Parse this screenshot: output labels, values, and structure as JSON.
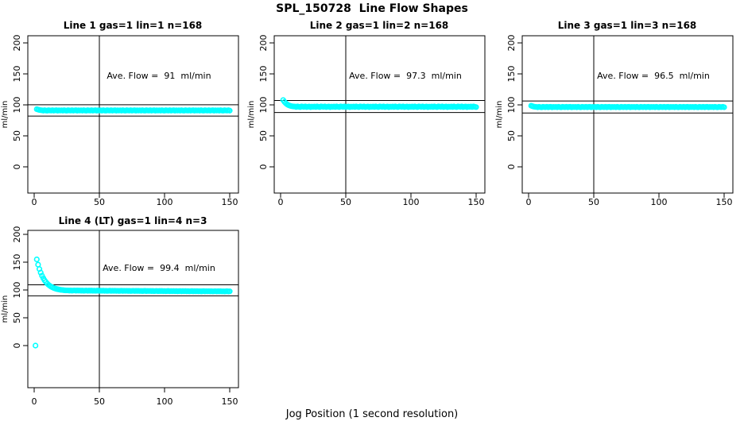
{
  "figure": {
    "title": "SPL_150728  Line Flow Shapes",
    "xlabel": "Jog Position (1 second resolution)",
    "background_color": "#ffffff",
    "axis_color": "#000000",
    "point_color": "#00ffff"
  },
  "chart_data": {
    "type": "scatter",
    "title": "SPL_150728  Line Flow Shapes",
    "xlabel": "Jog Position (1 second resolution)",
    "ylabel": "ml/min",
    "xlim": [
      0,
      155
    ],
    "ylim": [
      -40,
      210
    ],
    "grid": false,
    "legend": "none",
    "panels": [
      {
        "title": "Line 1 gas=1 lin=1 n=168",
        "annotation": "Ave. Flow =  91  ml/min",
        "ave_flow": 91,
        "n": 168,
        "ylabel": "ml/min",
        "x_ticks": [
          0,
          50,
          100,
          150
        ],
        "y_ticks": [
          0,
          50,
          100,
          150,
          200
        ],
        "ref_vline_x": 50,
        "ref_hlines": [
          100.1,
          81.9
        ],
        "x_start": 2,
        "x_step": 1,
        "y": [
          93.0,
          92.3,
          91.8,
          91.4,
          91.2,
          90.7,
          91.4,
          90.9,
          90.6,
          91.3,
          91.0,
          90.8,
          91.4,
          90.7,
          91.1,
          91.3,
          90.6,
          91.2,
          90.9,
          91.2,
          90.7,
          91.4,
          90.9,
          90.6,
          91.3,
          91.0,
          90.8,
          91.4,
          90.7,
          91.1,
          91.3,
          90.6,
          91.2,
          90.9,
          91.2,
          90.7,
          91.4,
          90.9,
          90.6,
          91.3,
          91.0,
          90.8,
          91.4,
          90.7,
          91.1,
          91.3,
          90.6,
          91.2,
          90.9,
          91.2,
          90.7,
          91.4,
          90.9,
          90.6,
          91.3,
          91.0,
          90.8,
          91.4,
          90.7,
          91.1,
          91.3,
          90.6,
          91.2,
          90.9,
          91.2,
          90.7,
          91.4,
          90.9,
          90.6,
          91.3,
          91.0,
          90.8,
          91.4,
          90.7,
          91.1,
          91.3,
          90.6,
          91.2,
          90.9,
          91.2,
          90.7,
          91.4,
          90.9,
          90.6,
          91.3,
          91.0,
          90.8,
          91.4,
          90.7,
          91.1,
          91.3,
          90.6,
          91.2,
          90.9,
          91.2,
          90.7,
          91.4,
          90.9,
          90.6,
          91.3,
          91.0,
          90.8,
          91.4,
          90.7,
          91.1,
          91.3,
          90.6,
          91.2,
          90.9,
          91.2,
          90.7,
          91.4,
          90.9,
          90.6,
          91.3,
          91.0,
          90.8,
          91.4,
          90.7,
          91.1,
          91.3,
          90.6,
          91.2,
          90.9,
          91.2,
          90.7,
          91.4,
          90.9,
          90.6,
          91.3,
          91.0,
          90.8,
          91.4,
          90.7,
          91.1,
          91.3,
          90.6,
          91.2,
          90.9,
          91.2,
          90.7,
          91.4,
          90.9,
          90.6,
          91.3,
          91.0,
          90.8,
          91.4,
          90.7
        ],
        "extra_points": []
      },
      {
        "title": "Line 2 gas=1 lin=2 n=168",
        "annotation": "Ave. Flow =  97.3  ml/min",
        "ave_flow": 97.3,
        "n": 168,
        "ylabel": "ml/min",
        "x_ticks": [
          0,
          50,
          100,
          150
        ],
        "y_ticks": [
          0,
          50,
          100,
          150,
          200
        ],
        "ref_vline_x": 50,
        "ref_hlines": [
          107.0,
          87.6
        ],
        "x_start": 2,
        "x_step": 1,
        "y": [
          107.8,
          104.8,
          102.6,
          100.9,
          99.6,
          98.7,
          98.1,
          97.7,
          97.4,
          97.3,
          96.6,
          97.5,
          96.9,
          96.4,
          97.4,
          97.1,
          96.8,
          97.5,
          96.5,
          97.0,
          97.3,
          96.3,
          97.2,
          96.8,
          97.3,
          96.6,
          97.5,
          96.9,
          96.4,
          97.4,
          97.1,
          96.8,
          97.5,
          96.5,
          97.0,
          97.3,
          96.3,
          97.2,
          96.8,
          97.3,
          96.6,
          97.5,
          96.9,
          96.4,
          97.4,
          97.1,
          96.8,
          97.5,
          96.5,
          97.0,
          97.3,
          96.3,
          97.2,
          96.8,
          97.3,
          96.6,
          97.5,
          96.9,
          96.4,
          97.4,
          97.1,
          96.8,
          97.5,
          96.5,
          97.0,
          97.3,
          96.3,
          97.2,
          96.8,
          97.3,
          96.6,
          97.5,
          96.9,
          96.4,
          97.4,
          97.1,
          96.8,
          97.5,
          96.5,
          97.0,
          97.3,
          96.3,
          97.2,
          96.8,
          97.3,
          96.6,
          97.5,
          96.9,
          96.4,
          97.4,
          97.1,
          96.8,
          97.5,
          96.5,
          97.0,
          97.3,
          96.3,
          97.2,
          96.8,
          97.3,
          96.6,
          97.5,
          96.9,
          96.4,
          97.4,
          97.1,
          96.8,
          97.5,
          96.5,
          97.0,
          97.3,
          96.3,
          97.2,
          96.8,
          97.3,
          96.6,
          97.5,
          96.9,
          96.4,
          97.4,
          97.1,
          96.8,
          97.5,
          96.5,
          97.0,
          97.3,
          96.3,
          97.2,
          96.8,
          97.3,
          96.6,
          97.5,
          96.9,
          96.4,
          97.4,
          97.1,
          96.8,
          97.5,
          96.5,
          97.0,
          97.3,
          96.3,
          97.2,
          96.8,
          97.3,
          96.6,
          97.5,
          96.9,
          96.4
        ],
        "extra_points": []
      },
      {
        "title": "Line 3 gas=1 lin=3 n=168",
        "annotation": "Ave. Flow =  96.5  ml/min",
        "ave_flow": 96.5,
        "n": 168,
        "ylabel": "ml/min",
        "x_ticks": [
          0,
          50,
          100,
          150
        ],
        "y_ticks": [
          0,
          50,
          100,
          150,
          200
        ],
        "ref_vline_x": 50,
        "ref_hlines": [
          106.2,
          86.9
        ],
        "x_start": 2,
        "x_step": 1,
        "y": [
          98.6,
          97.8,
          97.2,
          96.9,
          96.7,
          96.2,
          96.9,
          96.4,
          96.1,
          96.8,
          96.5,
          96.3,
          96.9,
          96.2,
          96.6,
          96.8,
          96.1,
          96.7,
          96.4,
          96.7,
          96.2,
          96.9,
          96.4,
          96.1,
          96.8,
          96.5,
          96.3,
          96.9,
          96.2,
          96.6,
          96.8,
          96.1,
          96.7,
          96.4,
          96.7,
          96.2,
          96.9,
          96.4,
          96.1,
          96.8,
          96.5,
          96.3,
          96.9,
          96.2,
          96.6,
          96.8,
          96.1,
          96.7,
          96.4,
          96.7,
          96.2,
          96.9,
          96.4,
          96.1,
          96.8,
          96.5,
          96.3,
          96.9,
          96.2,
          96.6,
          96.8,
          96.1,
          96.7,
          96.4,
          96.7,
          96.2,
          96.9,
          96.4,
          96.1,
          96.8,
          96.5,
          96.3,
          96.9,
          96.2,
          96.6,
          96.8,
          96.1,
          96.7,
          96.4,
          96.7,
          96.2,
          96.9,
          96.4,
          96.1,
          96.8,
          96.5,
          96.3,
          96.9,
          96.2,
          96.6,
          96.8,
          96.1,
          96.7,
          96.4,
          96.7,
          96.2,
          96.9,
          96.4,
          96.1,
          96.8,
          96.5,
          96.3,
          96.9,
          96.2,
          96.6,
          96.8,
          96.1,
          96.7,
          96.4,
          96.7,
          96.2,
          96.9,
          96.4,
          96.1,
          96.8,
          96.5,
          96.3,
          96.9,
          96.2,
          96.6,
          96.8,
          96.1,
          96.7,
          96.4,
          96.7,
          96.2,
          96.9,
          96.4,
          96.1,
          96.8,
          96.5,
          96.3,
          96.9,
          96.2,
          96.6,
          96.8,
          96.1,
          96.7,
          96.4,
          96.7,
          96.2,
          96.9,
          96.4,
          96.1,
          96.8,
          96.5,
          96.3,
          96.9,
          96.2
        ],
        "extra_points": []
      },
      {
        "title": "Line 4 (LT) gas=1 lin=4 n=3",
        "annotation": "Ave. Flow =  99.4  ml/min",
        "ave_flow": 99.4,
        "n": 3,
        "ylabel": "ml/min",
        "x_ticks": [
          0,
          50,
          100,
          150
        ],
        "y_ticks": [
          0,
          50,
          100,
          150,
          200
        ],
        "ref_vline_x": 50,
        "ref_hlines": [
          109.3,
          89.5
        ],
        "x_start": 2,
        "x_step": 1,
        "y": [
          155.0,
          145.6,
          137.7,
          131.2,
          125.7,
          121.1,
          117.3,
          114.2,
          111.5,
          109.3,
          107.5,
          106.0,
          104.7,
          103.6,
          102.7,
          102.0,
          101.4,
          100.9,
          100.4,
          100.1,
          99.8,
          99.5,
          99.3,
          99.2,
          99.2,
          98.9,
          99.1,
          98.8,
          99.0,
          99.2,
          98.8,
          99.1,
          98.9,
          99.0,
          98.7,
          98.9,
          98.6,
          98.8,
          99.0,
          98.6,
          98.9,
          98.7,
          98.9,
          98.6,
          98.8,
          98.5,
          98.7,
          98.9,
          98.5,
          98.8,
          98.6,
          98.7,
          98.4,
          98.6,
          98.3,
          98.5,
          98.7,
          98.3,
          98.6,
          98.4,
          98.6,
          98.3,
          98.5,
          98.2,
          98.4,
          98.6,
          98.2,
          98.5,
          98.3,
          98.5,
          98.2,
          98.4,
          98.1,
          98.3,
          98.5,
          98.1,
          98.4,
          98.2,
          98.4,
          98.1,
          98.3,
          98.0,
          98.2,
          98.4,
          98.0,
          98.3,
          98.1,
          98.3,
          98.0,
          98.2,
          97.9,
          98.1,
          98.3,
          97.9,
          98.2,
          98.0,
          98.2,
          97.9,
          98.1,
          97.8,
          98.0,
          98.2,
          97.8,
          98.1,
          97.9,
          98.1,
          97.8,
          98.0,
          97.7,
          97.9,
          98.1,
          97.7,
          98.0,
          97.8,
          98.0,
          97.7,
          97.9,
          97.6,
          97.8,
          98.0,
          97.6,
          97.9,
          97.7,
          97.9,
          97.6,
          97.8,
          97.5,
          97.7,
          97.9,
          97.5,
          97.8,
          97.6,
          97.8,
          97.5,
          97.7,
          97.4,
          97.6,
          97.8,
          97.4,
          97.7,
          97.5,
          97.7,
          97.4,
          97.6,
          97.3,
          97.5,
          97.7,
          97.3,
          97.6
        ],
        "extra_points": [
          [
            1,
            0
          ]
        ]
      }
    ]
  }
}
